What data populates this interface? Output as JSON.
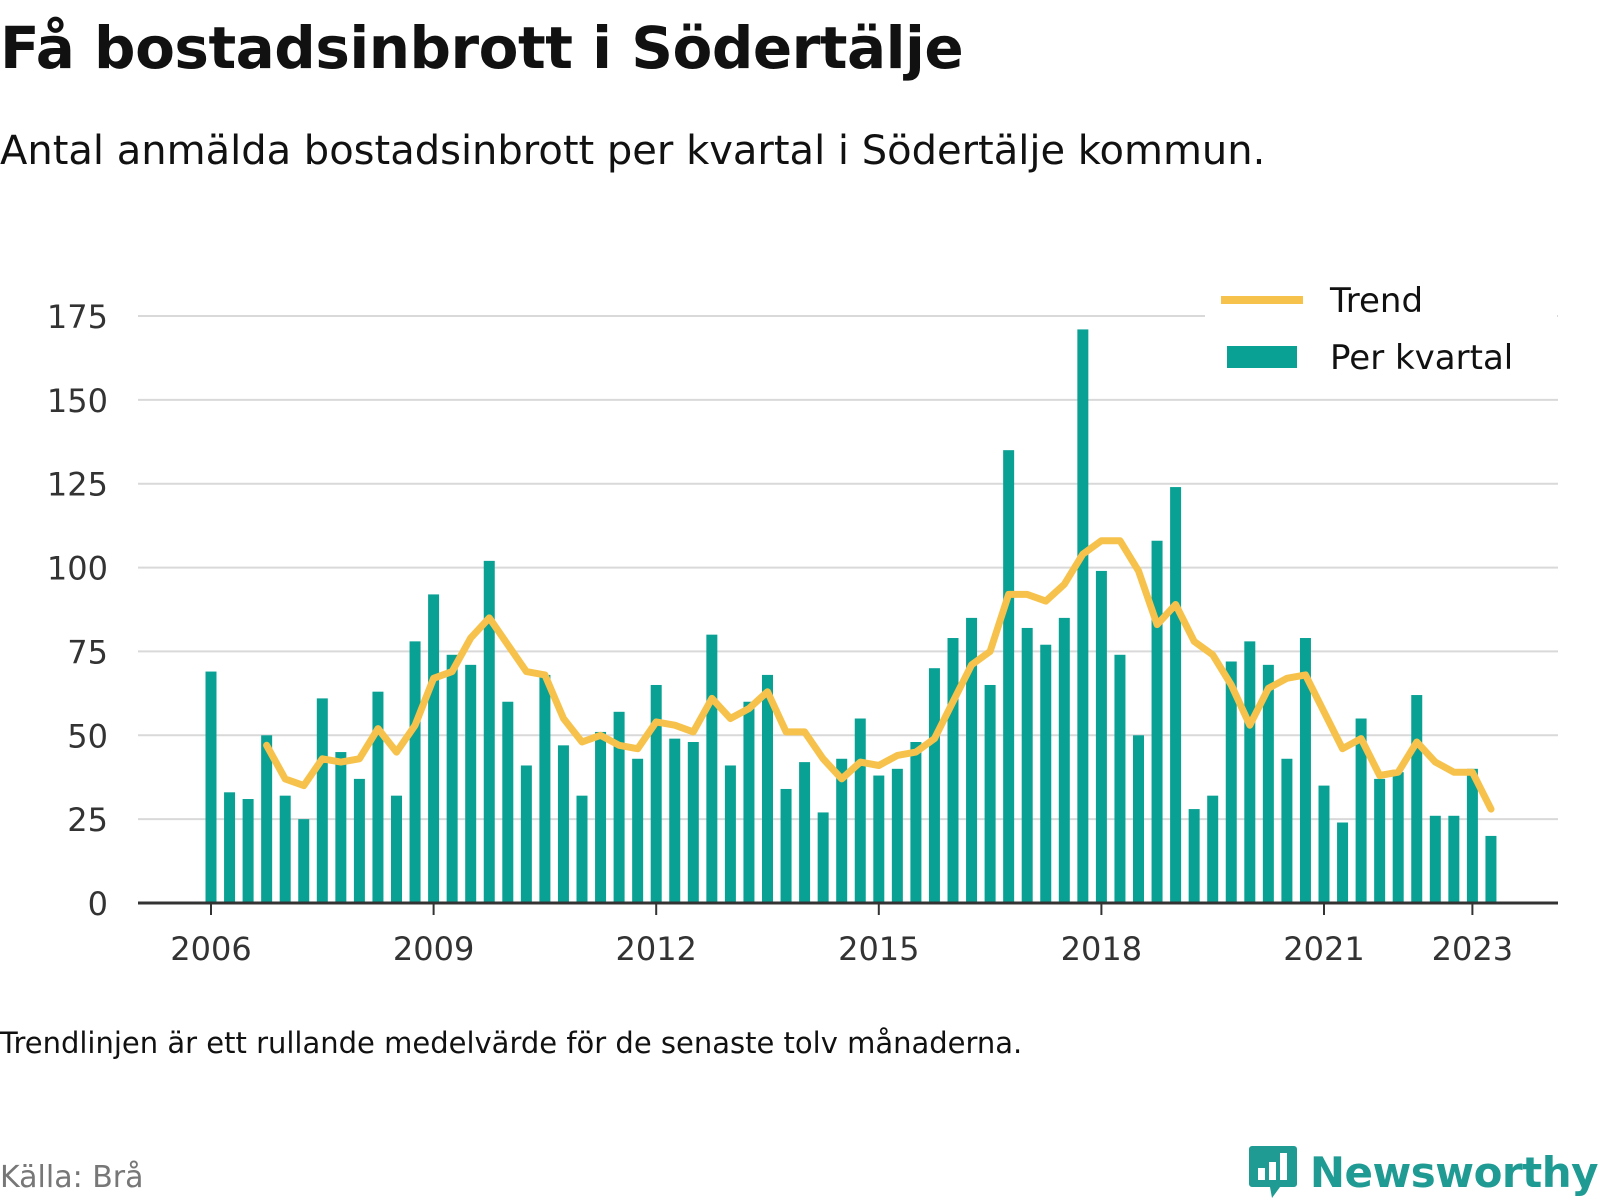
{
  "title": "Få bostadsinbrott i Södertälje",
  "subtitle": "Antal anmälda bostadsinbrott per kvartal i Södertälje kommun.",
  "note": "Trendlinjen är ett rullande medelvärde för de senaste tolv månaderna.",
  "source": "Källa: Brå",
  "brand": {
    "name": "Newsworthy",
    "icon": "newsworthy-logo-icon"
  },
  "colors": {
    "bar": "#0aa195",
    "trend": "#f7c24b",
    "grid": "#d9d9d9",
    "axis": "#333333"
  },
  "chart_data": {
    "type": "bar",
    "y_ticks": [
      0,
      25,
      50,
      75,
      100,
      125,
      150,
      175
    ],
    "ylim": [
      0,
      180
    ],
    "x_ticks": [
      "2006",
      "2009",
      "2012",
      "2015",
      "2018",
      "2021",
      "2023"
    ],
    "legend": {
      "placement": "top-right",
      "entries": [
        "Trend",
        "Per kvartal"
      ]
    },
    "grid": true,
    "categories": [
      "2006 Q1",
      "2006 Q2",
      "2006 Q3",
      "2006 Q4",
      "2007 Q1",
      "2007 Q2",
      "2007 Q3",
      "2007 Q4",
      "2008 Q1",
      "2008 Q2",
      "2008 Q3",
      "2008 Q4",
      "2009 Q1",
      "2009 Q2",
      "2009 Q3",
      "2009 Q4",
      "2010 Q1",
      "2010 Q2",
      "2010 Q3",
      "2010 Q4",
      "2011 Q1",
      "2011 Q2",
      "2011 Q3",
      "2011 Q4",
      "2012 Q1",
      "2012 Q2",
      "2012 Q3",
      "2012 Q4",
      "2013 Q1",
      "2013 Q2",
      "2013 Q3",
      "2013 Q4",
      "2014 Q1",
      "2014 Q2",
      "2014 Q3",
      "2014 Q4",
      "2015 Q1",
      "2015 Q2",
      "2015 Q3",
      "2015 Q4",
      "2016 Q1",
      "2016 Q2",
      "2016 Q3",
      "2016 Q4",
      "2017 Q1",
      "2017 Q2",
      "2017 Q3",
      "2017 Q4",
      "2018 Q1",
      "2018 Q2",
      "2018 Q3",
      "2018 Q4",
      "2019 Q1",
      "2019 Q2",
      "2019 Q3",
      "2019 Q4",
      "2020 Q1",
      "2020 Q2",
      "2020 Q3",
      "2020 Q4",
      "2021 Q1",
      "2021 Q2",
      "2021 Q3",
      "2021 Q4",
      "2022 Q1",
      "2022 Q2",
      "2022 Q3",
      "2022 Q4",
      "2023 Q1",
      "2023 Q2"
    ],
    "series": [
      {
        "name": "Per kvartal",
        "type": "bar",
        "values": [
          69,
          33,
          31,
          50,
          32,
          25,
          61,
          45,
          37,
          63,
          32,
          78,
          92,
          74,
          71,
          102,
          60,
          41,
          68,
          47,
          32,
          51,
          57,
          43,
          65,
          49,
          48,
          80,
          41,
          60,
          68,
          34,
          42,
          27,
          43,
          55,
          38,
          40,
          48,
          70,
          79,
          85,
          65,
          135,
          82,
          77,
          85,
          171,
          99,
          74,
          50,
          108,
          124,
          28,
          32,
          72,
          78,
          71,
          43,
          79,
          35,
          24,
          55,
          37,
          39,
          62,
          26,
          26,
          40,
          20
        ]
      },
      {
        "name": "Trend",
        "type": "line",
        "values": [
          null,
          null,
          null,
          47,
          37,
          35,
          43,
          42,
          43,
          52,
          45,
          53,
          67,
          69,
          79,
          85,
          77,
          69,
          68,
          55,
          48,
          50,
          47,
          46,
          54,
          53,
          51,
          61,
          55,
          58,
          63,
          51,
          51,
          43,
          37,
          42,
          41,
          44,
          45,
          49,
          60,
          71,
          75,
          92,
          92,
          90,
          95,
          104,
          108,
          108,
          99,
          83,
          89,
          78,
          74,
          65,
          53,
          64,
          67,
          68,
          57,
          46,
          49,
          38,
          39,
          48,
          42,
          39,
          39,
          28
        ]
      }
    ]
  }
}
